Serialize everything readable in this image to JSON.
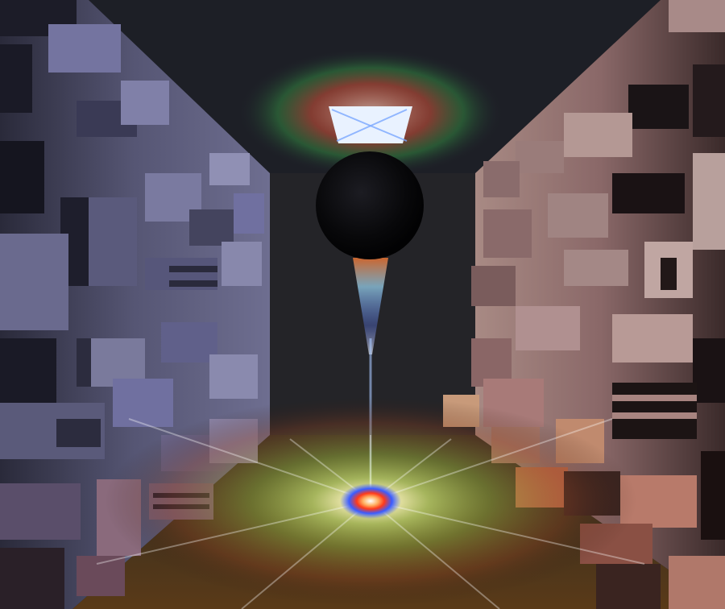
{
  "scene": {
    "type": "rendered-image",
    "subject": "corridor-with-blocky-walls-light-caustics",
    "colors": {
      "background": "#0f1014",
      "ceiling": "#1d1f26",
      "left_wall": "#6a6a8e",
      "right_wall": "#9a7878",
      "floor": "#3d3420",
      "sphere": "#0a0a0c",
      "ceiling_light": "#e9f2ff",
      "caustic_core": "#ffffff",
      "caustic_ring": "#3a5cff",
      "caustic_red": "#ff3a1a",
      "caustic_yellow": "#ffd84a",
      "caustic_green": "#7ad94c"
    }
  }
}
